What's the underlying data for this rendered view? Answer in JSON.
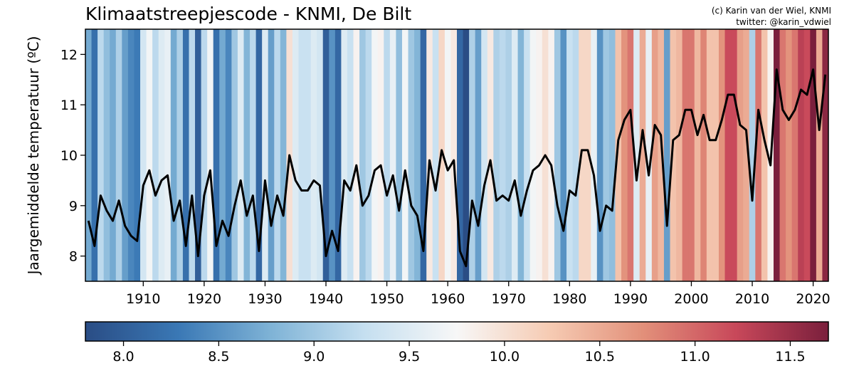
{
  "chart_data": {
    "type": "line",
    "title": "Klimaatstreepjescode - KNMI, De Bilt",
    "credit_lines": [
      "(c) Karin van der Wiel, KNMI",
      "twitter: @karin_vdwiel"
    ],
    "ylabel": "Jaargemiddelde temperatuur (ºC)",
    "xlim": [
      1900.5,
      2022.5
    ],
    "ylim": [
      7.5,
      12.5
    ],
    "x_ticks": [
      1910,
      1920,
      1930,
      1940,
      1950,
      1960,
      1970,
      1980,
      1990,
      2000,
      2010,
      2020
    ],
    "y_ticks": [
      8,
      9,
      10,
      11,
      12
    ],
    "grid": false,
    "stripes": "yearly bars colored by temperature (background)",
    "line_color": "#000000",
    "colorbar": {
      "colormap": "RdBu_r",
      "range": [
        7.8,
        11.7
      ],
      "ticks": [
        "8.0",
        "8.5",
        "9.0",
        "9.5",
        "10.0",
        "10.5",
        "11.0",
        "11.5"
      ],
      "colors": [
        "#2a4d85",
        "#3a78b5",
        "#7fb3d6",
        "#c5dff0",
        "#f7f7f7",
        "#f6cbb3",
        "#e2907a",
        "#c8485a",
        "#7a1f3c"
      ]
    },
    "series": [
      {
        "x_start": 1901,
        "x_end": 2022,
        "values": [
          8.7,
          8.2,
          9.2,
          8.9,
          8.7,
          9.1,
          8.6,
          8.4,
          8.3,
          9.4,
          9.7,
          9.2,
          9.5,
          9.6,
          8.7,
          9.1,
          8.2,
          9.2,
          8.0,
          9.2,
          9.7,
          8.2,
          8.7,
          8.4,
          9.0,
          9.5,
          8.8,
          9.2,
          8.1,
          9.5,
          8.6,
          9.2,
          8.8,
          10.0,
          9.5,
          9.3,
          9.3,
          9.5,
          9.4,
          8.0,
          8.5,
          8.1,
          9.5,
          9.3,
          9.8,
          9.0,
          9.2,
          9.7,
          9.8,
          9.2,
          9.6,
          8.9,
          9.7,
          9.0,
          8.8,
          8.1,
          9.9,
          9.3,
          10.1,
          9.7,
          9.9,
          8.1,
          7.8,
          9.1,
          8.6,
          9.4,
          9.9,
          9.1,
          9.2,
          9.1,
          9.5,
          8.8,
          9.3,
          9.7,
          9.8,
          10.0,
          9.8,
          9.0,
          8.5,
          9.3,
          9.2,
          10.1,
          10.1,
          9.6,
          8.5,
          9.0,
          8.9,
          10.3,
          10.7,
          10.9,
          9.5,
          10.5,
          9.6,
          10.6,
          10.4,
          8.6,
          10.3,
          10.4,
          10.9,
          10.9,
          10.4,
          10.8,
          10.3,
          10.3,
          10.7,
          11.2,
          11.2,
          10.6,
          10.5,
          9.1,
          10.9,
          10.3,
          9.8,
          11.7,
          10.9,
          10.7,
          10.9,
          11.3,
          11.2,
          11.7,
          10.5,
          11.6
        ]
      }
    ]
  }
}
